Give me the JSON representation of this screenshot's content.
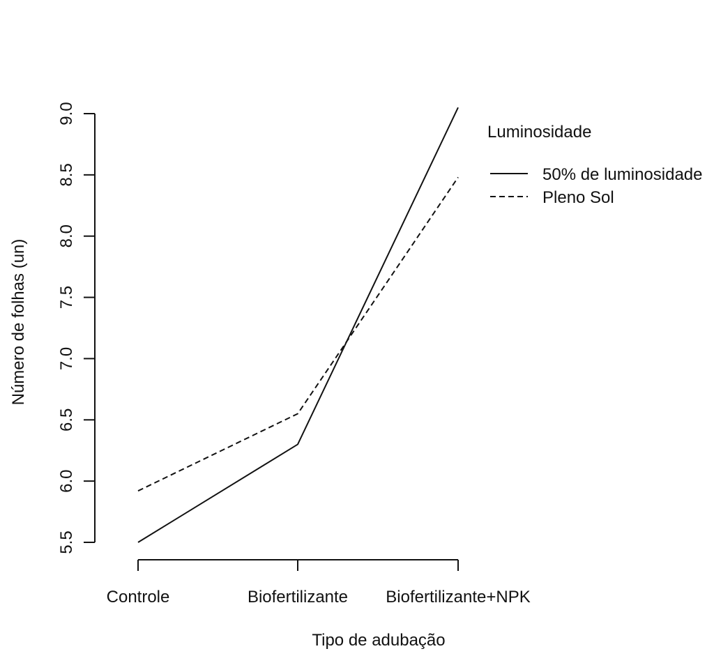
{
  "chart_data": {
    "type": "line",
    "categories": [
      "Controle",
      "Biofertilizante",
      "Biofertilizante+NPK"
    ],
    "series": [
      {
        "name": "50% de luminosidade",
        "values": [
          5.5,
          6.3,
          9.05
        ],
        "line_style": "solid"
      },
      {
        "name": "Pleno Sol",
        "values": [
          5.92,
          6.55,
          8.48
        ],
        "line_style": "dashed"
      }
    ],
    "xlabel": "Tipo de adubação",
    "ylabel": "Número de folhas (un)",
    "ylim": [
      5.5,
      9.0
    ],
    "yticks": [
      "5.5",
      "6.0",
      "6.5",
      "7.0",
      "7.5",
      "8.0",
      "8.5",
      "9.0"
    ],
    "legend": {
      "title": "Luminosidade",
      "placement": "top-right"
    },
    "grid": false,
    "colors": {
      "lines": "#111111",
      "background": "#ffffff"
    }
  }
}
